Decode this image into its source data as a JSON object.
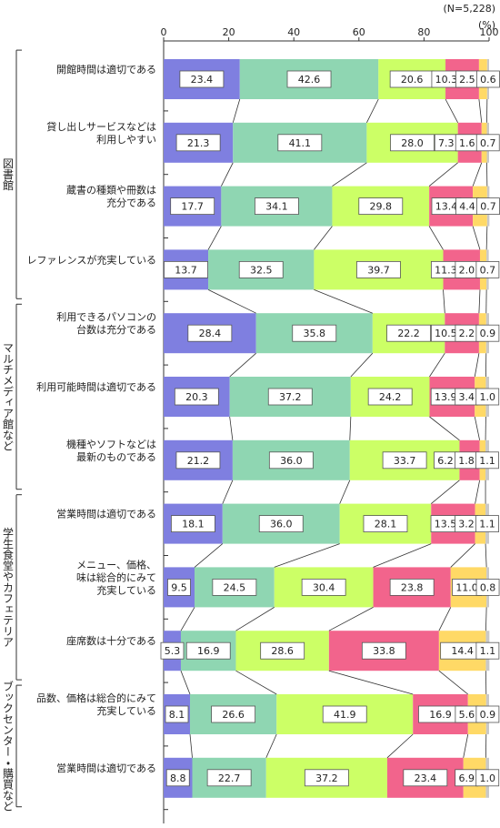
{
  "chart_data": {
    "type": "stacked-bar",
    "note": "(N=5,228)",
    "unit": "(%)",
    "xlim": [
      0,
      100
    ],
    "xticks": [
      0,
      20,
      40,
      60,
      80,
      100
    ],
    "groups": [
      {
        "name": "図書館",
        "categories": [
          [
            "開館時間は適切である"
          ],
          [
            "貸し出しサービスなどは",
            "利用しやすい"
          ],
          [
            "蔵書の種類や冊数は",
            "充分である"
          ],
          [
            "レファレンスが充実している"
          ]
        ]
      },
      {
        "name": "マルチメディア館など",
        "categories": [
          [
            "利用できるパソコンの",
            "台数は充分である"
          ],
          [
            "利用可能時間は適切である"
          ],
          [
            "機種やソフトなどは",
            "最新のものである"
          ]
        ]
      },
      {
        "name": "学生食堂やカフェテリア",
        "categories": [
          [
            "営業時間は適切である"
          ],
          [
            "メニュー、価格、",
            "味は総合的にみて",
            "充実している"
          ],
          [
            "座席数は十分である"
          ]
        ]
      },
      {
        "name": "ブックセンター・購買など",
        "categories": [
          [
            "品数、価格は総合的にみて",
            "充実している"
          ],
          [
            "営業時間は適切である"
          ]
        ]
      }
    ],
    "series": [
      {
        "color": "#7f7fe0",
        "values": [
          23.4,
          21.3,
          17.7,
          13.7,
          28.4,
          20.3,
          21.2,
          18.1,
          9.5,
          5.3,
          8.1,
          8.8
        ],
        "value_labels": [
          "23.4",
          "21.3",
          "17.7",
          "13.7",
          "28.4",
          "20.3",
          "21.2",
          "18.1",
          "9.5",
          "5.3",
          "8.1",
          "8.8"
        ]
      },
      {
        "color": "#8fd6b2",
        "values": [
          42.6,
          41.1,
          34.1,
          32.5,
          35.8,
          37.2,
          36.0,
          36.0,
          24.5,
          16.9,
          26.6,
          22.7
        ],
        "value_labels": [
          "42.6",
          "41.1",
          "34.1",
          "32.5",
          "35.8",
          "37.2",
          "36.0",
          "36.0",
          "24.5",
          "16.9",
          "26.6",
          "22.7"
        ]
      },
      {
        "color": "#ccff66",
        "values": [
          20.6,
          28.0,
          29.8,
          39.7,
          22.2,
          24.2,
          33.7,
          28.1,
          30.4,
          28.6,
          41.9,
          37.2
        ],
        "value_labels": [
          "20.6",
          "28.0",
          "29.8",
          "39.7",
          "22.2",
          "24.2",
          "33.7",
          "28.1",
          "30.4",
          "28.6",
          "41.9",
          "37.2"
        ]
      },
      {
        "color": "#f2648c",
        "values": [
          10.3,
          7.3,
          13.4,
          11.3,
          10.5,
          13.9,
          6.2,
          13.5,
          23.8,
          33.8,
          16.9,
          23.4
        ],
        "value_labels": [
          "10.3",
          "7.3",
          "13.4",
          "11.3",
          "10.5",
          "13.9",
          "6.2",
          "13.5",
          "23.8",
          "33.8",
          "16.9",
          "23.4"
        ]
      },
      {
        "color": "#ffd966",
        "values": [
          2.5,
          1.6,
          4.4,
          2.0,
          2.2,
          3.4,
          1.8,
          3.2,
          11.0,
          14.4,
          5.6,
          6.9
        ],
        "value_labels": [
          "2.5",
          "1.6",
          "4.4",
          "2.0",
          "2.2",
          "3.4",
          "1.8",
          "3.2",
          "11.0",
          "14.4",
          "5.6",
          "6.9"
        ]
      },
      {
        "color": "#c8c8c8",
        "values": [
          0.6,
          0.7,
          0.7,
          0.7,
          0.9,
          1.0,
          1.1,
          1.1,
          0.8,
          1.1,
          0.9,
          1.0
        ],
        "value_labels": [
          "0.6",
          "0.7",
          "0.7",
          "0.7",
          "0.9",
          "1.0",
          "1.1",
          "1.1",
          "0.8",
          "1.1",
          "0.9",
          "1.0"
        ]
      }
    ]
  }
}
